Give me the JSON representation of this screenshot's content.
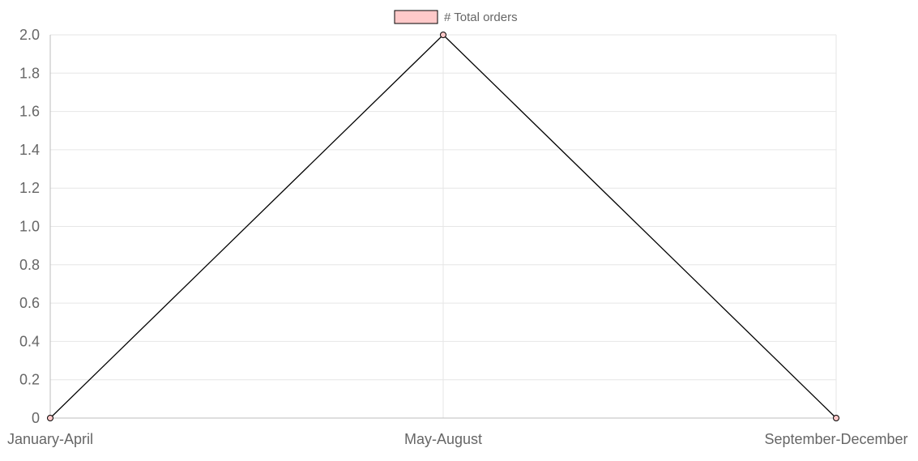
{
  "colors": {
    "line": "#000000",
    "point_fill": "#ffc9c9",
    "legend_fill": "#ffc9c9",
    "grid": "#e6e6e6",
    "axis": "#bdbdbd",
    "tick_text": "#666666"
  },
  "chart_data": {
    "type": "line",
    "categories": [
      "January-April",
      "May-August",
      "September-December"
    ],
    "series": [
      {
        "name": "# Total orders",
        "values": [
          0,
          2,
          0
        ]
      }
    ],
    "ylim": [
      0,
      2
    ],
    "yticks": [
      "0",
      "0.2",
      "0.4",
      "0.6",
      "0.8",
      "1.0",
      "1.2",
      "1.4",
      "1.6",
      "1.8",
      "2.0"
    ],
    "grid": true,
    "legend": "top-center"
  }
}
